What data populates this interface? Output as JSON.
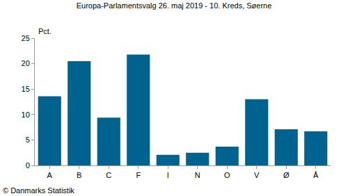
{
  "chart_data": {
    "type": "bar",
    "title": "Europa-Parlamentsvalg 26. maj 2019 - 10. Kreds, Søerne",
    "ylabel": "Pct.",
    "categories": [
      "A",
      "B",
      "C",
      "F",
      "I",
      "N",
      "O",
      "V",
      "Ø",
      "Å"
    ],
    "values": [
      13.6,
      20.5,
      9.4,
      21.8,
      2.1,
      2.5,
      3.7,
      13.0,
      7.1,
      6.7
    ],
    "color": "#00628f",
    "ylim": [
      0,
      25
    ],
    "yticks": [
      0,
      5,
      10,
      15,
      20,
      25
    ],
    "grid": false,
    "annotations": [
      "© Danmarks Statistik"
    ]
  }
}
